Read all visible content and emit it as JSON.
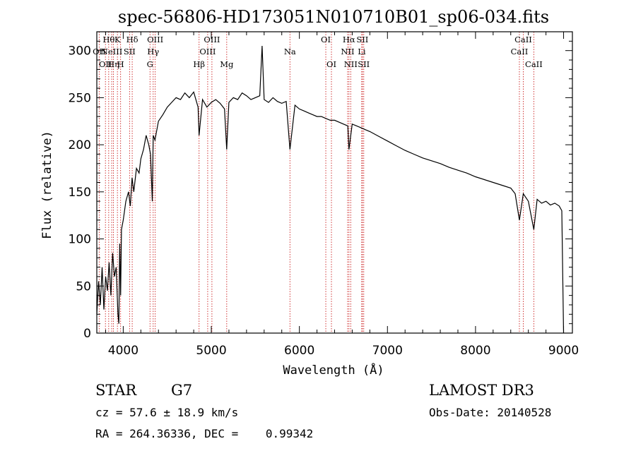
{
  "chart_data": {
    "type": "line",
    "title": "spec-56806-HD173051N010710B01_sp06-034.fits",
    "xlabel": "Wavelength (Å)",
    "ylabel": "Flux (relative)",
    "xlim": [
      3700,
      9100
    ],
    "ylim": [
      0,
      320
    ],
    "xticks": [
      4000,
      5000,
      6000,
      7000,
      8000,
      9000
    ],
    "yticks": [
      0,
      50,
      100,
      150,
      200,
      250,
      300
    ],
    "xtick_labels": [
      "4000",
      "5000",
      "6000",
      "7000",
      "8000",
      "9000"
    ],
    "ytick_labels": [
      "0",
      "50",
      "100",
      "150",
      "200",
      "250",
      "300"
    ],
    "grid": false,
    "series": [
      {
        "color": "#000000",
        "x": [
          3700,
          3720,
          3740,
          3760,
          3780,
          3800,
          3820,
          3840,
          3860,
          3880,
          3900,
          3920,
          3940,
          3950,
          3960,
          3970,
          3980,
          4000,
          4030,
          4060,
          4080,
          4100,
          4120,
          4150,
          4180,
          4200,
          4230,
          4260,
          4290,
          4310,
          4330,
          4340,
          4360,
          4400,
          4450,
          4500,
          4550,
          4600,
          4650,
          4700,
          4750,
          4800,
          4850,
          4861,
          4900,
          4950,
          5000,
          5050,
          5100,
          5150,
          5175,
          5200,
          5250,
          5300,
          5350,
          5400,
          5450,
          5500,
          5550,
          5577,
          5600,
          5650,
          5700,
          5750,
          5800,
          5850,
          5893,
          5950,
          6000,
          6050,
          6100,
          6150,
          6200,
          6250,
          6300,
          6350,
          6400,
          6450,
          6500,
          6550,
          6563,
          6600,
          6650,
          6700,
          6750,
          6800,
          6900,
          7000,
          7100,
          7200,
          7300,
          7400,
          7500,
          7600,
          7700,
          7800,
          7900,
          8000,
          8100,
          8200,
          8300,
          8400,
          8450,
          8498,
          8542,
          8600,
          8662,
          8700,
          8750,
          8800,
          8850,
          8900,
          8950,
          8980,
          9000
        ],
        "y": [
          20,
          55,
          30,
          70,
          25,
          60,
          45,
          75,
          40,
          85,
          60,
          70,
          20,
          10,
          95,
          40,
          110,
          120,
          140,
          150,
          135,
          165,
          150,
          175,
          170,
          185,
          195,
          210,
          200,
          190,
          140,
          210,
          205,
          225,
          232,
          240,
          245,
          250,
          248,
          255,
          250,
          256,
          240,
          210,
          248,
          240,
          245,
          248,
          244,
          238,
          195,
          245,
          250,
          248,
          255,
          252,
          248,
          250,
          252,
          305,
          248,
          245,
          250,
          246,
          244,
          246,
          195,
          242,
          238,
          236,
          234,
          232,
          230,
          230,
          228,
          226,
          226,
          224,
          222,
          220,
          195,
          222,
          220,
          218,
          216,
          214,
          209,
          204,
          199,
          194,
          190,
          186,
          183,
          180,
          176,
          173,
          170,
          166,
          163,
          160,
          157,
          154,
          148,
          120,
          148,
          140,
          110,
          142,
          138,
          140,
          136,
          138,
          135,
          130,
          0
        ]
      }
    ],
    "spectral_lines": [
      {
        "wavelength": 3727,
        "label": "OII",
        "row": 2
      },
      {
        "wavelength": 3798,
        "label": "OII",
        "row": 3
      },
      {
        "wavelength": 3835,
        "label": "Hθ",
        "row": 1
      },
      {
        "wavelength": 3869,
        "label": "NeIII",
        "row": 2
      },
      {
        "wavelength": 3889,
        "label": "Hη",
        "row": 3
      },
      {
        "wavelength": 3934,
        "label": "K",
        "row": 1
      },
      {
        "wavelength": 3970,
        "label": "H",
        "row": 3
      },
      {
        "wavelength": 4072,
        "label": "SII",
        "row": 2
      },
      {
        "wavelength": 4102,
        "label": "Hδ",
        "row": 1
      },
      {
        "wavelength": 4304,
        "label": "G",
        "row": 3
      },
      {
        "wavelength": 4340,
        "label": "Hγ",
        "row": 2
      },
      {
        "wavelength": 4363,
        "label": "OIII",
        "row": 1
      },
      {
        "wavelength": 4861,
        "label": "Hβ",
        "row": 3
      },
      {
        "wavelength": 4959,
        "label": "OIII",
        "row": 2
      },
      {
        "wavelength": 5007,
        "label": "OIII",
        "row": 1
      },
      {
        "wavelength": 5175,
        "label": "Mg",
        "row": 3
      },
      {
        "wavelength": 5893,
        "label": "Na",
        "row": 2
      },
      {
        "wavelength": 6300,
        "label": "OI",
        "row": 1
      },
      {
        "wavelength": 6364,
        "label": "OI",
        "row": 3
      },
      {
        "wavelength": 6548,
        "label": "NII",
        "row": 2
      },
      {
        "wavelength": 6563,
        "label": "Hα",
        "row": 1
      },
      {
        "wavelength": 6583,
        "label": "NII",
        "row": 3
      },
      {
        "wavelength": 6708,
        "label": "Li",
        "row": 2
      },
      {
        "wavelength": 6716,
        "label": "SII",
        "row": 1
      },
      {
        "wavelength": 6731,
        "label": "SII",
        "row": 3
      },
      {
        "wavelength": 8498,
        "label": "CaII",
        "row": 2
      },
      {
        "wavelength": 8542,
        "label": "CaII",
        "row": 1
      },
      {
        "wavelength": 8662,
        "label": "CaII",
        "row": 3
      }
    ],
    "line_marker_color": "#cc2222"
  },
  "info": {
    "class_label": "STAR",
    "subclass_label": "G7",
    "survey_label": "LAMOST DR3",
    "redshift_text": "cz = 57.6 ± 18.9 km/s",
    "obs_date_text": "Obs-Date: 20140528",
    "coords_text": "RA = 264.36336, DEC =    0.99342"
  }
}
